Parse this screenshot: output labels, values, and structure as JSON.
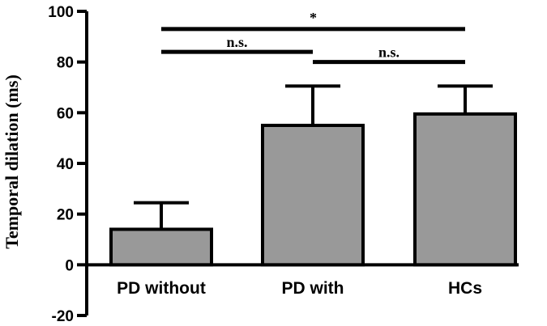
{
  "chart_data": {
    "type": "bar",
    "ylabel": "Temporal dilation (ms)",
    "categories": [
      "PD without",
      "PD with",
      "HCs"
    ],
    "values": [
      14,
      55,
      59.5
    ],
    "error_plus": [
      10.5,
      15.5,
      11
    ],
    "ylim": [
      -20,
      100
    ],
    "yticks": [
      -20,
      0,
      20,
      40,
      60,
      80,
      100
    ],
    "bar_color": "#999999",
    "grid": false,
    "significance": [
      {
        "from": 0,
        "to": 1,
        "label": "n.s.",
        "y": 84
      },
      {
        "from": 1,
        "to": 2,
        "label": "n.s.",
        "y": 80
      },
      {
        "from": 0,
        "to": 2,
        "label": "*",
        "y": 93
      }
    ]
  }
}
